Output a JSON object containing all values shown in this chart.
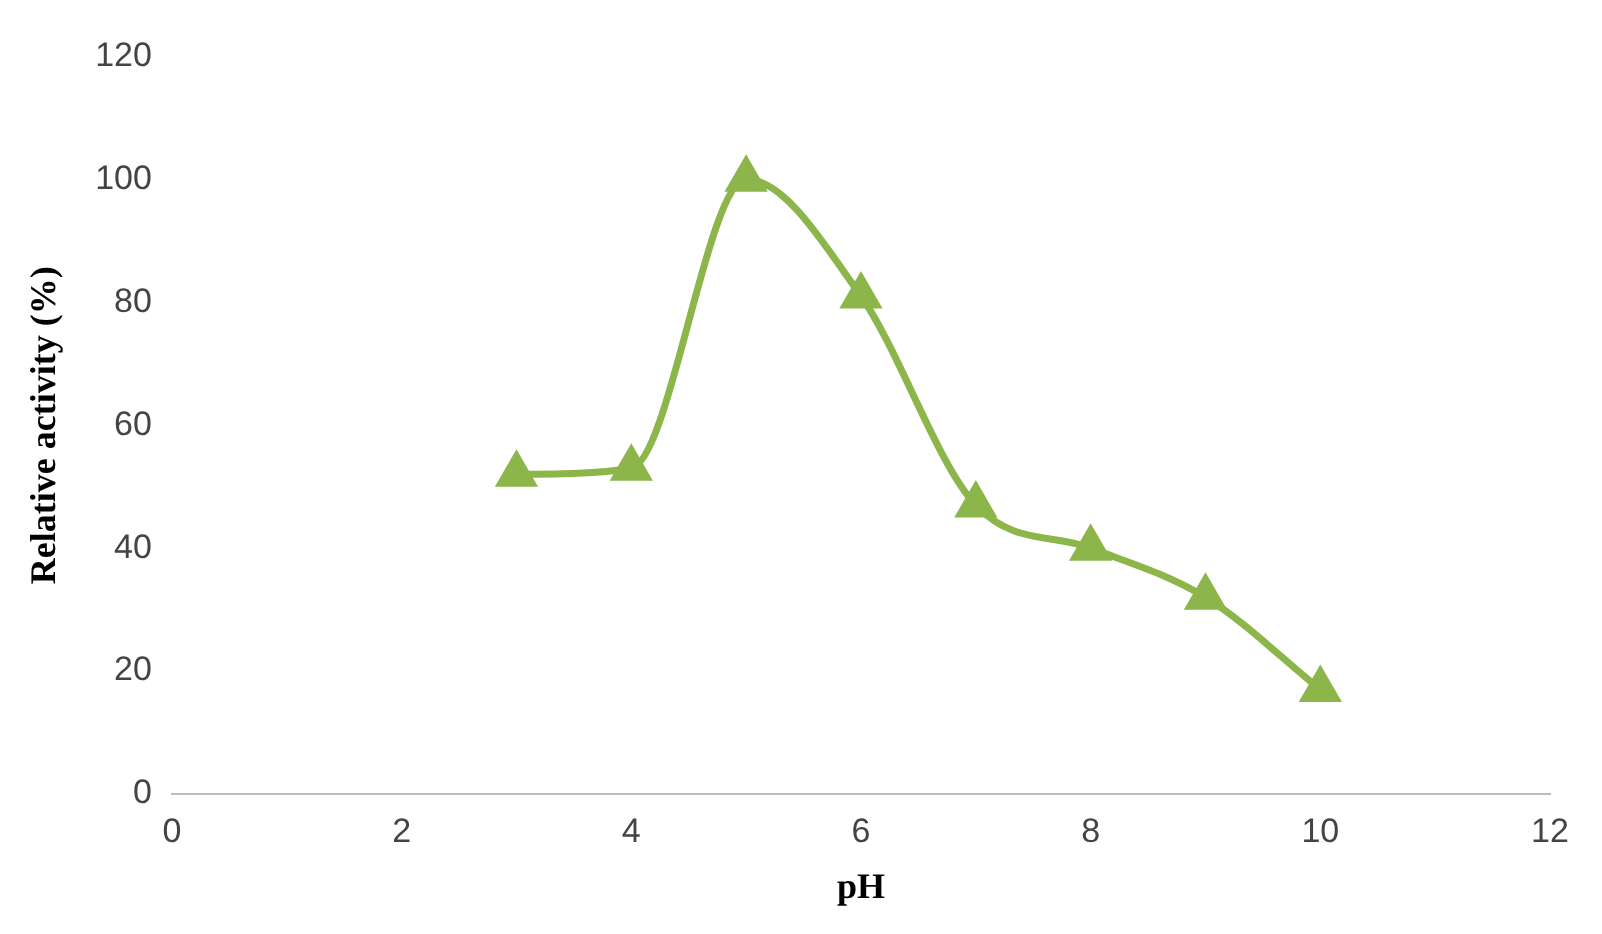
{
  "chart_data": {
    "type": "line",
    "xlabel": "pH",
    "ylabel": "Relative activity (%)",
    "x": [
      3,
      4,
      5,
      6,
      7,
      8,
      9,
      10
    ],
    "series": [
      {
        "color": "#8cb54a",
        "values": [
          52,
          53,
          100,
          81,
          47,
          40,
          32,
          17
        ]
      }
    ],
    "xlim": [
      0,
      12
    ],
    "xticks": [
      0,
      2,
      4,
      6,
      8,
      10,
      12
    ],
    "ylim": [
      0,
      120
    ],
    "yticks": [
      0,
      20,
      40,
      60,
      80,
      100,
      120
    ],
    "grid": false,
    "legend": false,
    "marker": "triangle",
    "line_style": "solid"
  }
}
